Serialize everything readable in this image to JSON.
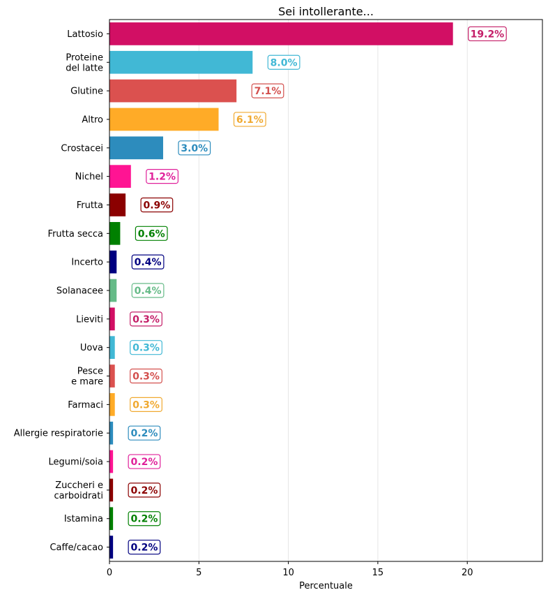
{
  "chart_data": {
    "type": "bar",
    "orientation": "horizontal",
    "title": "Sei intollerante...",
    "xlabel": "Percentuale",
    "ylabel": "",
    "xlim": [
      0,
      24.2
    ],
    "xticks": [
      0,
      5,
      10,
      15,
      20
    ],
    "grid": "vertical",
    "value_suffix": "%",
    "categories": [
      [
        "Lattosio"
      ],
      [
        "Proteine",
        "del latte"
      ],
      [
        "Glutine"
      ],
      [
        "Altro"
      ],
      [
        "Crostacei"
      ],
      [
        "Nichel"
      ],
      [
        "Frutta"
      ],
      [
        "Frutta secca"
      ],
      [
        "Incerto"
      ],
      [
        "Solanacee"
      ],
      [
        "Lieviti"
      ],
      [
        "Uova"
      ],
      [
        "Pesce",
        "e mare"
      ],
      [
        "Farmaci"
      ],
      [
        "Allergie respiratorie"
      ],
      [
        "Legumi/soia"
      ],
      [
        "Zuccheri e",
        "carboidrati"
      ],
      [
        "Istamina"
      ],
      [
        "Caffe/cacao"
      ]
    ],
    "values": [
      19.2,
      8.0,
      7.1,
      6.1,
      3.0,
      1.2,
      0.9,
      0.6,
      0.4,
      0.4,
      0.3,
      0.3,
      0.3,
      0.3,
      0.2,
      0.2,
      0.2,
      0.2,
      0.2
    ],
    "bar_colors": [
      "#D20F64",
      "#41B8D5",
      "#DB514F",
      "#FFAB27",
      "#2D8CBD",
      "#FF1493",
      "#8B0000",
      "#008000",
      "#000080",
      "#66BB88",
      "#D20F64",
      "#41B8D5",
      "#DB514F",
      "#FFAB27",
      "#2D8CBD",
      "#FF1493",
      "#8B0000",
      "#008000",
      "#000080"
    ],
    "label_colors": [
      "#C41E68",
      "#41B8D5",
      "#D3504E",
      "#F0A930",
      "#2D8CBD",
      "#E0209A",
      "#8B0000",
      "#008000",
      "#000080",
      "#66BB88",
      "#C41E68",
      "#41B8D5",
      "#D3504E",
      "#F0A930",
      "#2D8CBD",
      "#E0209A",
      "#8B0000",
      "#008000",
      "#000080"
    ]
  }
}
